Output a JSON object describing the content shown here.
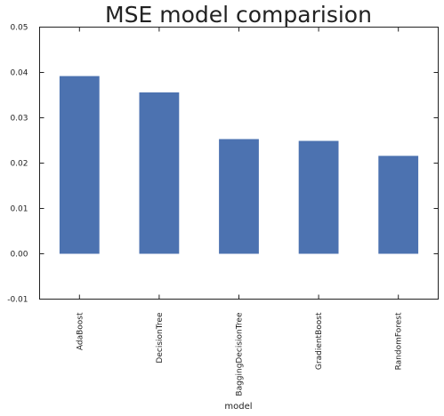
{
  "chart_data": {
    "type": "bar",
    "title": "MSE model comparision",
    "xlabel": "model",
    "ylabel": "",
    "categories": [
      "AdaBoost",
      "DecisionTree",
      "BaggingDecisionTree",
      "GradientBoost",
      "RandomForest"
    ],
    "values": [
      0.0392,
      0.0356,
      0.0253,
      0.0249,
      0.0216
    ],
    "ylim": [
      -0.01,
      0.05
    ],
    "yticks": [
      "0.05",
      "0.04",
      "0.03",
      "0.02",
      "0.01",
      "0.00",
      "-0.01"
    ],
    "ytick_values": [
      0.05,
      0.04,
      0.03,
      0.02,
      0.01,
      0.0,
      -0.01
    ],
    "grid": false,
    "legend": "none",
    "bar_color": "#4c72b0"
  }
}
